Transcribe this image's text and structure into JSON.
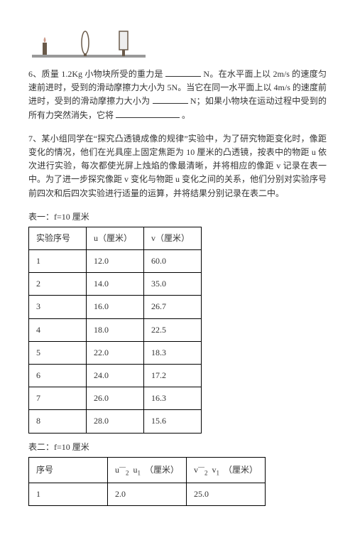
{
  "diagram": {
    "fill": "#6a5a4a",
    "line": "#333"
  },
  "q6": {
    "prefix": "6、质量 1.2Kg 小物块所受的重力是",
    "mid1": "N。在水平面上以 2m/s 的速度匀速前进时，受到的滑动摩擦力大小为 5N。当它在同一水平面上以 4m/s 的速度前进时，受到的滑动摩擦力大小为",
    "mid2": "N；如果小物块在运动过程中受到的所有力突然消失，它将",
    "suffix": "。"
  },
  "q7": {
    "text": "7、某小组同学在“探究凸透镜成像的规律”实验中，为了研究物距变化时，像距变化的情况，他们在光具座上固定焦距为 10 厘米的凸透镜，按表中的物距 u 依次进行实验，每次都使光屏上烛焰的像最清晰，并将相应的像距 v 记录在表一中。为了进一步探究像距 v 变化与物距 u 变化之间的关系，他们分别对实验序号前四次和后四次实验进行适量的运算，并将结果分别记录在表二中。"
  },
  "table1": {
    "caption": "表一：f=10 厘米",
    "headers": [
      "实验序号",
      "u（厘米）",
      "v（厘米）"
    ],
    "rows": [
      [
        "1",
        "12.0",
        "60.0"
      ],
      [
        "2",
        "14.0",
        "35.0"
      ],
      [
        "3",
        "16.0",
        "26.7"
      ],
      [
        "4",
        "18.0",
        "22.5"
      ],
      [
        "5",
        "22.0",
        "18.3"
      ],
      [
        "6",
        "24.0",
        "17.2"
      ],
      [
        "7",
        "26.0",
        "16.3"
      ],
      [
        "8",
        "28.0",
        "15.6"
      ]
    ]
  },
  "table2": {
    "caption": "表二：f=10 厘米",
    "h0": "序号",
    "h1_a": "u",
    "h1_b": "u",
    "h1_unit": "（厘米）",
    "h2_a": "v",
    "h2_b": "v",
    "h2_unit": "（厘米）",
    "rows": [
      [
        "1",
        "2.0",
        "25.0"
      ]
    ]
  }
}
